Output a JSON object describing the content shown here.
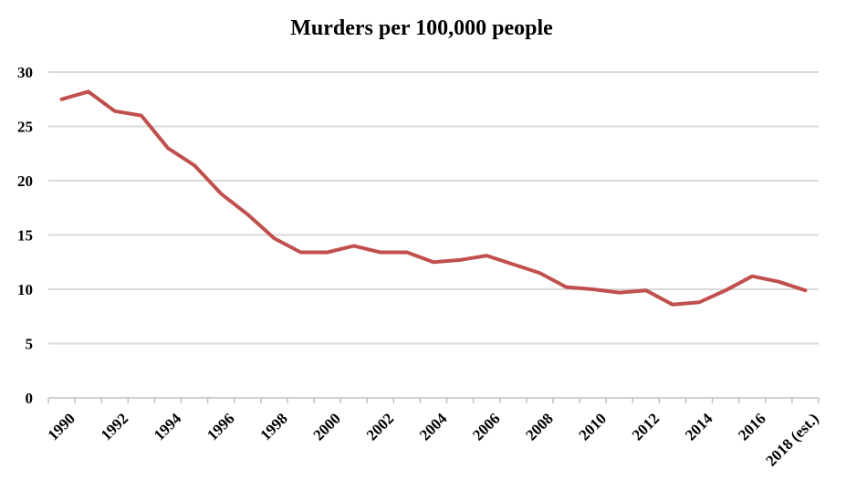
{
  "chart_data": {
    "type": "line",
    "title": "Murders per 100,000 people",
    "xlabel": "",
    "ylabel": "",
    "ylim": [
      0,
      30
    ],
    "yticks": [
      0,
      5,
      10,
      15,
      20,
      25,
      30
    ],
    "grid": true,
    "legend": "none",
    "x": [
      1990,
      1991,
      1992,
      1993,
      1994,
      1995,
      1996,
      1997,
      1998,
      1999,
      2000,
      2001,
      2002,
      2003,
      2004,
      2005,
      2006,
      2007,
      2008,
      2009,
      2010,
      2011,
      2012,
      2013,
      2014,
      2015,
      2016,
      2017,
      2018
    ],
    "xtick_labels": [
      "1990",
      "1992",
      "1994",
      "1996",
      "1998",
      "2000",
      "2002",
      "2004",
      "2006",
      "2008",
      "2010",
      "2012",
      "2014",
      "2016",
      "2018 (est.)"
    ],
    "series": [
      {
        "color": "#c0504d",
        "values": [
          27.5,
          28.2,
          26.4,
          26.0,
          23.0,
          21.4,
          18.8,
          16.9,
          14.7,
          13.4,
          13.4,
          14.0,
          13.4,
          13.4,
          12.5,
          12.7,
          13.1,
          12.3,
          11.5,
          10.2,
          10.0,
          9.7,
          9.9,
          8.6,
          8.8,
          9.9,
          11.2,
          10.7,
          9.9
        ]
      }
    ],
    "colors": {
      "grid": "#d9d9d9",
      "axis": "#bfbfbf"
    }
  }
}
